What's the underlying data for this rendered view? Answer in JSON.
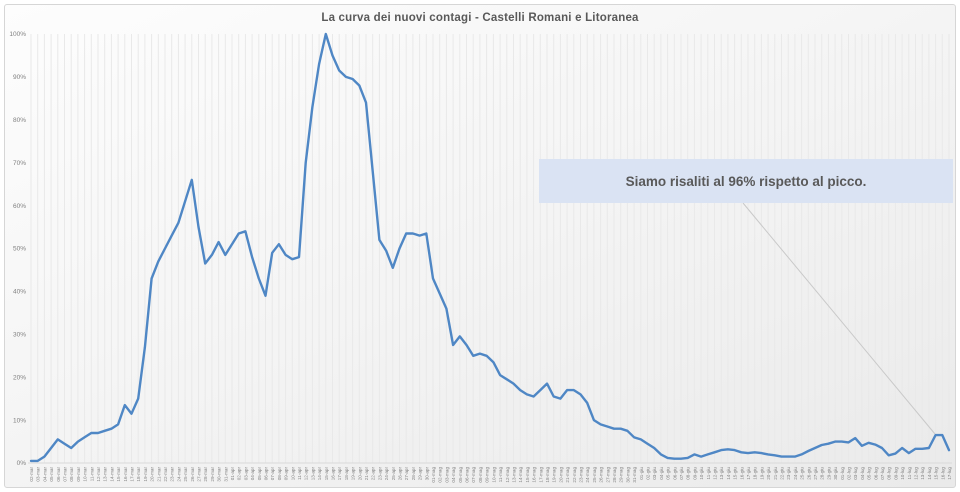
{
  "title": "La curva dei nuovi contagi - Castelli Romani e Litoranea",
  "annotation": {
    "text": "Siamo risaliti al 96% rispetto al picco."
  },
  "colors": {
    "line": "#4f87c5",
    "annotation_bg": "#dae3f3",
    "annotation_text": "#595959",
    "title_text": "#595959",
    "axis_label_text": "#7f7f7f",
    "gridline": "#e9e9e9",
    "leader_line": "#c9c9c9",
    "panel_bg": "#f0f0f0"
  },
  "chart_data": {
    "type": "line",
    "title": "La curva dei nuovi contagi - Castelli Romani e Litoranea",
    "xlabel": "",
    "ylabel": "",
    "ylim": [
      0,
      100
    ],
    "grid": "vertical-daily",
    "legend": "none",
    "line_color": "#4f87c5",
    "yticks": [
      "0%",
      "10%",
      "20%",
      "30%",
      "40%",
      "50%",
      "60%",
      "70%",
      "80%",
      "90%",
      "100%"
    ],
    "x": [
      "02-mar",
      "03-mar",
      "04-mar",
      "05-mar",
      "06-mar",
      "07-mar",
      "08-mar",
      "09-mar",
      "10-mar",
      "11-mar",
      "12-mar",
      "13-mar",
      "14-mar",
      "15-mar",
      "16-mar",
      "17-mar",
      "18-mar",
      "19-mar",
      "20-mar",
      "21-mar",
      "22-mar",
      "23-mar",
      "24-mar",
      "25-mar",
      "26-mar",
      "27-mar",
      "28-mar",
      "29-mar",
      "30-mar",
      "31-mar",
      "01-apr",
      "02-apr",
      "03-apr",
      "04-apr",
      "05-apr",
      "06-apr",
      "07-apr",
      "08-apr",
      "09-apr",
      "10-apr",
      "11-apr",
      "12-apr",
      "13-apr",
      "14-apr",
      "15-apr",
      "16-apr",
      "17-apr",
      "18-apr",
      "19-apr",
      "20-apr",
      "21-apr",
      "22-apr",
      "23-apr",
      "24-apr",
      "25-apr",
      "26-apr",
      "27-apr",
      "28-apr",
      "29-apr",
      "30-apr",
      "01-mag",
      "02-mag",
      "03-mag",
      "04-mag",
      "05-mag",
      "06-mag",
      "07-mag",
      "08-mag",
      "09-mag",
      "10-mag",
      "11-mag",
      "12-mag",
      "13-mag",
      "14-mag",
      "15-mag",
      "16-mag",
      "17-mag",
      "18-mag",
      "19-mag",
      "20-mag",
      "21-mag",
      "22-mag",
      "23-mag",
      "24-mag",
      "25-mag",
      "26-mag",
      "27-mag",
      "28-mag",
      "29-mag",
      "30-mag",
      "31-mag",
      "01-giu",
      "02-giu",
      "03-giu",
      "04-giu",
      "05-giu",
      "06-giu",
      "07-giu",
      "08-giu",
      "09-giu",
      "10-giu",
      "11-giu",
      "12-giu",
      "13-giu",
      "14-giu",
      "15-giu",
      "16-giu",
      "17-giu",
      "18-giu",
      "19-giu",
      "20-giu",
      "21-giu",
      "22-giu",
      "23-giu",
      "24-giu",
      "25-giu",
      "26-giu",
      "27-giu",
      "28-giu",
      "29-giu",
      "30-giu",
      "01-lug",
      "02-lug",
      "03-lug",
      "04-lug",
      "05-lug",
      "06-lug",
      "07-lug",
      "08-lug",
      "09-lug",
      "10-lug",
      "11-lug",
      "12-lug",
      "13-lug",
      "14-lug",
      "15-lug",
      "16-lug",
      "17-lug"
    ],
    "values": [
      0.5,
      0.5,
      1.5,
      3.5,
      5.5,
      4.5,
      3.5,
      5,
      6,
      7,
      7,
      7.5,
      8,
      9,
      13.5,
      11.5,
      15,
      27,
      43,
      47,
      50,
      53,
      56,
      61,
      66,
      55,
      46.5,
      48.5,
      51.5,
      48.5,
      51,
      53.5,
      54,
      48,
      43,
      39,
      49,
      51,
      48.5,
      47.5,
      48,
      70,
      83,
      93,
      100,
      95,
      91.5,
      90,
      89.5,
      88,
      84,
      68,
      52,
      49.5,
      45.5,
      50,
      53.5,
      53.5,
      53,
      53.5,
      43,
      39.5,
      36,
      27.5,
      29.5,
      27.5,
      25,
      25.5,
      25,
      23.5,
      20.5,
      19.5,
      18.5,
      17,
      16,
      15.5,
      17,
      18.5,
      15.5,
      15,
      17,
      17,
      16,
      14,
      10,
      9,
      8.5,
      8,
      8,
      7.5,
      6,
      5.5,
      4.5,
      3.5,
      2,
      1.2,
      1,
      1,
      1.2,
      2,
      1.5,
      2,
      2.5,
      3,
      3.2,
      3,
      2.5,
      2.3,
      2.5,
      2.3,
      2,
      1.8,
      1.5,
      1.5,
      1.5,
      2,
      2.8,
      3.5,
      4.2,
      4.5,
      5,
      5,
      4.8,
      5.8,
      4,
      4.7,
      4.3,
      3.5,
      1.8,
      2.2,
      3.5,
      2.3,
      3.3,
      3.3,
      3.5,
      6.5,
      6.5,
      3
    ]
  }
}
